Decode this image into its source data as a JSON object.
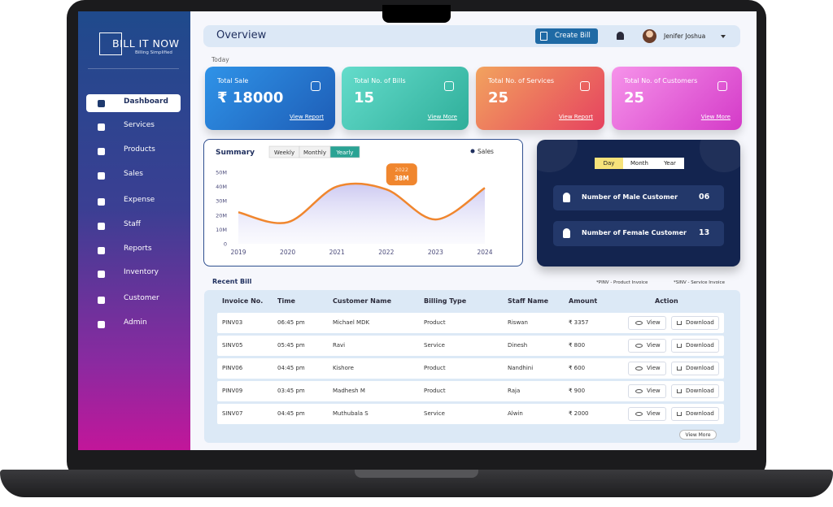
{
  "sidebar": {
    "brand": "BILL IT NOW",
    "tagline": "Billing Simplified",
    "menu": [
      "Dashboard",
      "Services",
      "Products",
      "Sales",
      "Expense",
      "Staff",
      "Reports",
      "Inventory",
      "Customer",
      "Admin"
    ],
    "active": 0
  },
  "header": {
    "title": "Overview",
    "button": "Create Bill",
    "user": "Jenifer Joshua"
  },
  "section_label": "Today",
  "cards": [
    {
      "title": "Total Sale",
      "value": "₹ 18000",
      "link": "View Report"
    },
    {
      "title": "Total No. of Bills",
      "value": "15",
      "link": "View More"
    },
    {
      "title": "Total No. of Services",
      "value": "25",
      "link": "View Report"
    },
    {
      "title": "Total No. of Customers",
      "value": "25",
      "link": "View More"
    }
  ],
  "chart_data": {
    "type": "line",
    "title": "Summary",
    "tabs": [
      "Weekly",
      "Monthly",
      "Yearly"
    ],
    "active_tab": 2,
    "categories": [
      "2019",
      "2020",
      "2021",
      "2022",
      "2023",
      "2024"
    ],
    "series": [
      {
        "name": "Sales",
        "color": "#f0862e",
        "values": [
          22000000,
          15000000,
          40000000,
          38000000,
          17000000,
          39000000
        ]
      }
    ],
    "ylim": [
      0,
      50000000
    ],
    "yticks": [
      0,
      {
        "value": 10000000,
        "label": "10M"
      },
      {
        "value": 20000000,
        "label": "20M"
      },
      {
        "value": 30000000,
        "label": "30M"
      },
      {
        "value": 40000000,
        "label": "40M"
      },
      {
        "value": 50000000,
        "label": "50M"
      }
    ],
    "tooltip": {
      "category": "2022",
      "value": 38000000,
      "label": "38M"
    }
  },
  "customers": {
    "tabs": [
      "Day",
      "Month",
      "Year"
    ],
    "active_tab": 0,
    "rows": [
      {
        "label": "Number of Male Customer",
        "value": "06"
      },
      {
        "label": "Number of Female Customer",
        "value": "13"
      }
    ]
  },
  "recent_bill": {
    "title": "Recent Bill",
    "notes": [
      "*PINV -  Product Invoice",
      "*SINV -  Service Invoice"
    ],
    "columns": [
      "Invoice No.",
      "Time",
      "Customer Name",
      "Billing Type",
      "Staff Name",
      "Amount",
      "Action"
    ],
    "rows": [
      [
        "PINV03",
        "06:45 pm",
        "Michael MDK",
        "Product",
        "Riswan",
        "₹ 3357"
      ],
      [
        "SINV05",
        "05:45 pm",
        "Ravi",
        "Service",
        "Dinesh",
        "₹ 800"
      ],
      [
        "PINV06",
        "04:45 pm",
        "Kishore",
        "Product",
        "Nandhini",
        "₹ 600"
      ],
      [
        "PINV09",
        "03:45 pm",
        "Madhesh M",
        "Product",
        "Raja",
        "₹ 900"
      ],
      [
        "SINV07",
        "04:45 pm",
        "Muthubala S",
        "Service",
        "Alwin",
        "₹ 2000"
      ]
    ],
    "row_actions": [
      "View",
      "Download"
    ],
    "more": "View More"
  }
}
